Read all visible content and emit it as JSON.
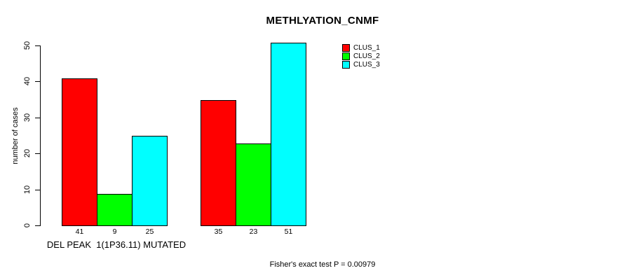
{
  "chart_data": {
    "type": "bar",
    "title": "METHLYATION_CNMF",
    "ylabel": "number of cases",
    "ylim": [
      0,
      50
    ],
    "yticks": [
      0,
      10,
      20,
      30,
      40,
      50
    ],
    "group_labels": [
      "DEL PEAK  1(1P36.11) MUTATED",
      ""
    ],
    "series": [
      {
        "name": "CLUS_1",
        "color": "#ff0000",
        "values": [
          41,
          35
        ]
      },
      {
        "name": "CLUS_2",
        "color": "#00ff00",
        "values": [
          9,
          23
        ]
      },
      {
        "name": "CLUS_3",
        "color": "#00ffff",
        "values": [
          25,
          51
        ]
      }
    ],
    "bar_value_labels": [
      [
        41,
        9,
        25
      ],
      [
        35,
        23,
        51
      ]
    ],
    "legend_position": "top-right",
    "grid": false,
    "annotation": "Fisher's exact test P = 0.00979"
  }
}
